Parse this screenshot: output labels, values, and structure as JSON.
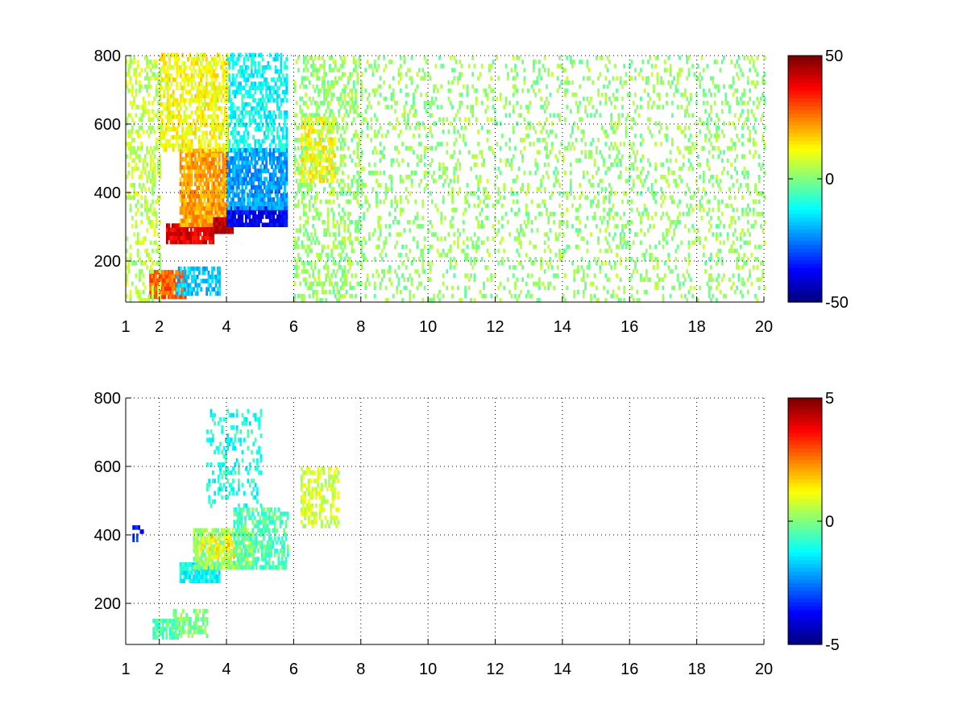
{
  "chart_data": [
    {
      "type": "heatmap",
      "title": "",
      "xlabel": "",
      "ylabel": "",
      "xlim": [
        1,
        20
      ],
      "ylim": [
        80,
        800
      ],
      "xticks": [
        1,
        2,
        4,
        6,
        8,
        10,
        12,
        14,
        16,
        18,
        20
      ],
      "xtick_labels": [
        "1",
        "2",
        "4",
        "6",
        "8",
        "10",
        "12",
        "14",
        "16",
        "18",
        "20"
      ],
      "yticks": [
        200,
        400,
        600,
        800
      ],
      "ytick_labels": [
        "200",
        "400",
        "600",
        "800"
      ],
      "grid": true,
      "colormap": "jet",
      "clim": [
        -50,
        50
      ],
      "colorbar_ticks": [
        -50,
        0,
        50
      ],
      "colorbar_tick_labels": [
        "-50",
        "0",
        "50"
      ],
      "seed": 7,
      "features": [
        {
          "x": [
            2.2,
            3.6
          ],
          "y": [
            250,
            300
          ],
          "value": 40,
          "density": 0.95
        },
        {
          "x": [
            1.7,
            2.8
          ],
          "y": [
            90,
            170
          ],
          "value": 28,
          "density": 0.9
        },
        {
          "x": [
            2.6,
            4.0
          ],
          "y": [
            300,
            520
          ],
          "value": 22,
          "density": 0.85
        },
        {
          "x": [
            3.6,
            4.2
          ],
          "y": [
            280,
            320
          ],
          "value": 45,
          "density": 0.9
        },
        {
          "x": [
            4.0,
            5.8
          ],
          "y": [
            300,
            350
          ],
          "value": -38,
          "density": 0.9
        },
        {
          "x": [
            4.0,
            5.8
          ],
          "y": [
            350,
            520
          ],
          "value": -22,
          "density": 0.8
        },
        {
          "x": [
            4.0,
            5.8
          ],
          "y": [
            520,
            800
          ],
          "value": -12,
          "density": 0.55
        },
        {
          "x": [
            2.5,
            3.8
          ],
          "y": [
            100,
            180
          ],
          "value": -18,
          "density": 0.7
        },
        {
          "x": [
            2.0,
            4.0
          ],
          "y": [
            520,
            800
          ],
          "value": 12,
          "density": 0.6
        },
        {
          "x": [
            1.0,
            2.0
          ],
          "y": [
            80,
            800
          ],
          "value": 6,
          "density": 0.35
        },
        {
          "x": [
            6.0,
            8.0
          ],
          "y": [
            80,
            800
          ],
          "value": 2,
          "density": 0.35
        },
        {
          "x": [
            6.2,
            7.2
          ],
          "y": [
            430,
            620
          ],
          "value": 12,
          "density": 0.6
        },
        {
          "x": [
            8.0,
            20.0
          ],
          "y": [
            80,
            800
          ],
          "value": 2,
          "density": 0.18
        }
      ]
    },
    {
      "type": "heatmap",
      "title": "",
      "xlabel": "",
      "ylabel": "",
      "xlim": [
        1,
        20
      ],
      "ylim": [
        80,
        800
      ],
      "xticks": [
        1,
        2,
        4,
        6,
        8,
        10,
        12,
        14,
        16,
        18,
        20
      ],
      "xtick_labels": [
        "1",
        "2",
        "4",
        "6",
        "8",
        "10",
        "12",
        "14",
        "16",
        "18",
        "20"
      ],
      "yticks": [
        200,
        400,
        600,
        800
      ],
      "ytick_labels": [
        "200",
        "400",
        "600",
        "800"
      ],
      "grid": true,
      "colormap": "jet",
      "clim": [
        -5,
        5
      ],
      "colorbar_ticks": [
        -5,
        0,
        5
      ],
      "colorbar_tick_labels": [
        "-5",
        "0",
        "5"
      ],
      "seed": 13,
      "features": [
        {
          "x": [
            1.8,
            2.6
          ],
          "y": [
            95,
            150
          ],
          "value": -0.5,
          "density": 0.85
        },
        {
          "x": [
            2.4,
            3.4
          ],
          "y": [
            100,
            180
          ],
          "value": 0,
          "density": 0.6
        },
        {
          "x": [
            2.6,
            3.8
          ],
          "y": [
            260,
            320
          ],
          "value": -1.2,
          "density": 0.9
        },
        {
          "x": [
            3.0,
            4.8
          ],
          "y": [
            300,
            420
          ],
          "value": 0.3,
          "density": 0.75
        },
        {
          "x": [
            3.2,
            4.2
          ],
          "y": [
            330,
            400
          ],
          "value": 1.6,
          "density": 0.3
        },
        {
          "x": [
            4.2,
            5.8
          ],
          "y": [
            300,
            480
          ],
          "value": -0.5,
          "density": 0.6
        },
        {
          "x": [
            3.4,
            5.0
          ],
          "y": [
            480,
            760
          ],
          "value": -1.0,
          "density": 0.25
        },
        {
          "x": [
            6.2,
            7.3
          ],
          "y": [
            420,
            600
          ],
          "value": 0.8,
          "density": 0.45
        },
        {
          "x": [
            1.2,
            1.5
          ],
          "y": [
            380,
            420
          ],
          "value": -3.5,
          "density": 0.4
        }
      ]
    }
  ]
}
